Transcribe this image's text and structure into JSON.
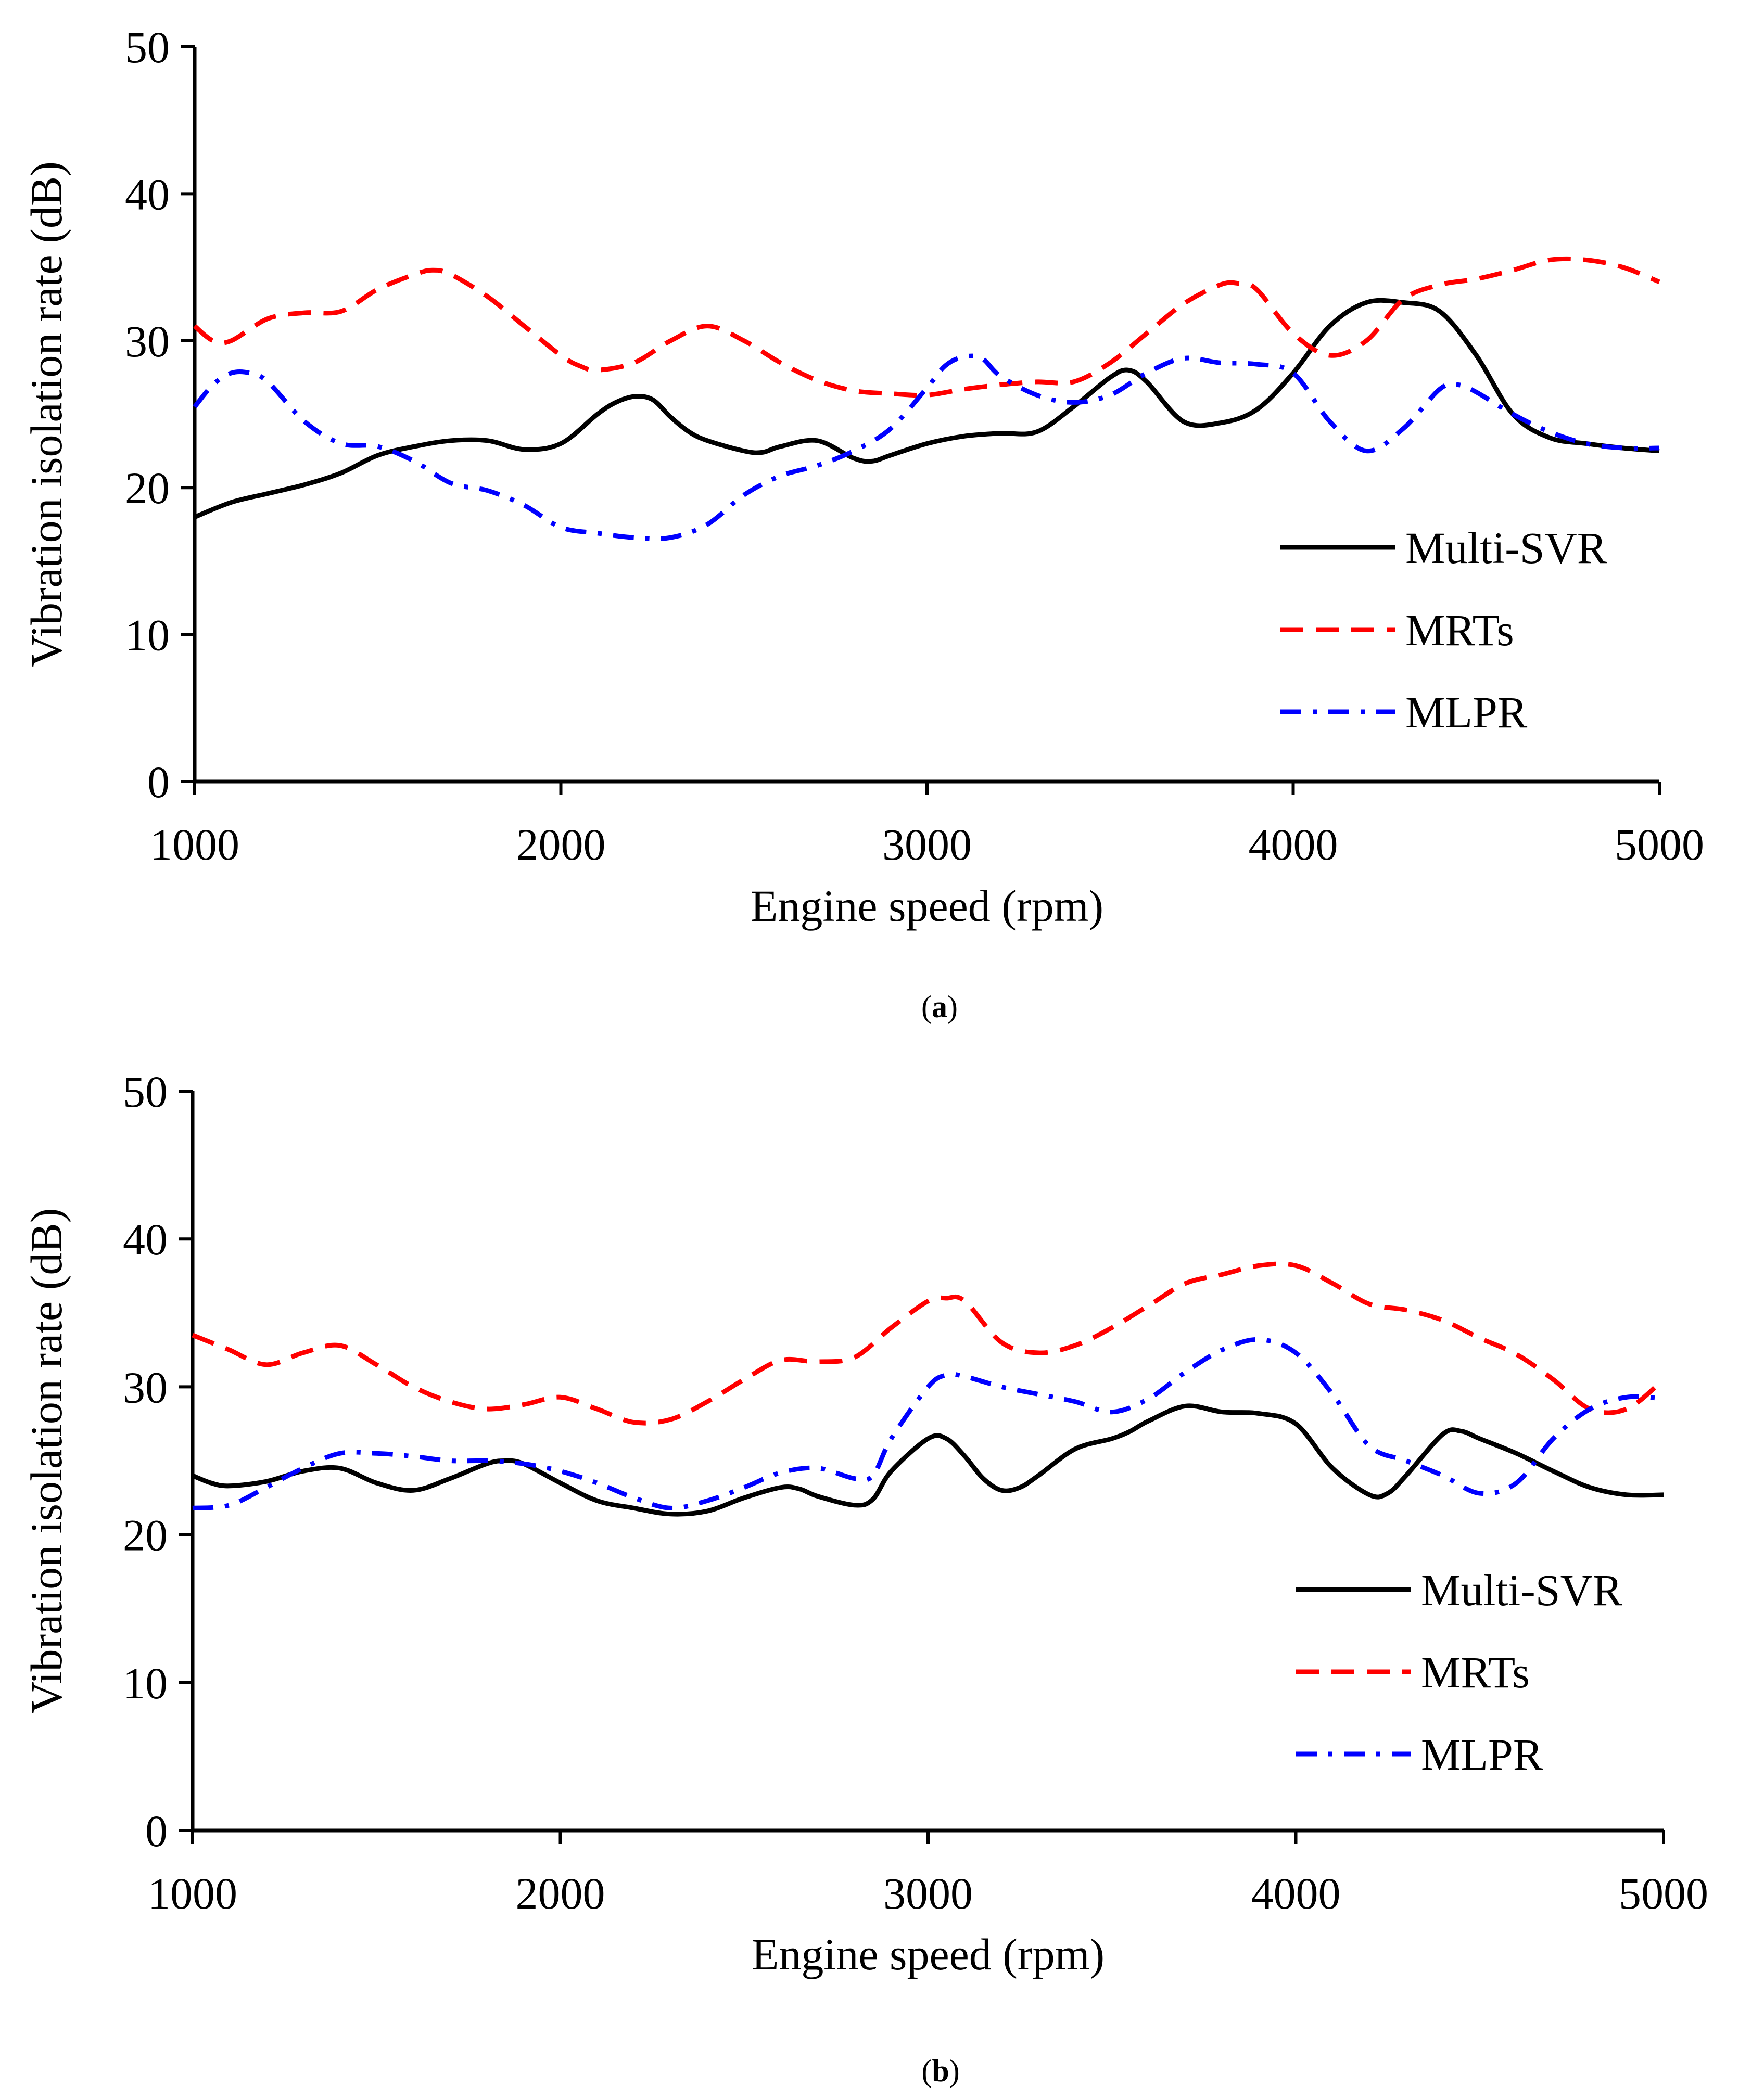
{
  "chart_data": [
    {
      "type": "line",
      "panel": "(a)",
      "panel_letter": "a",
      "xlabel": "Engine speed (rpm)",
      "ylabel": "Vibration isolation rate (dB)",
      "xlim": [
        1000,
        5000
      ],
      "ylim": [
        0,
        50
      ],
      "xticks": [
        1000,
        2000,
        3000,
        4000,
        5000
      ],
      "yticks": [
        0,
        10,
        20,
        30,
        40,
        50
      ],
      "legend_position": "right",
      "series": [
        {
          "name": "Multi-SVR",
          "color": "#000000",
          "style": "solid",
          "x": [
            1000,
            1100,
            1200,
            1300,
            1400,
            1500,
            1600,
            1700,
            1800,
            1900,
            2000,
            2100,
            2150,
            2200,
            2250,
            2300,
            2350,
            2400,
            2500,
            2550,
            2600,
            2700,
            2800,
            2850,
            2900,
            3000,
            3100,
            3200,
            3300,
            3400,
            3500,
            3550,
            3600,
            3700,
            3800,
            3900,
            4000,
            4100,
            4200,
            4300,
            4400,
            4500,
            4600,
            4700,
            4800,
            4900,
            5000
          ],
          "values": [
            18,
            19,
            19.6,
            20.2,
            21,
            22.2,
            22.8,
            23.2,
            23.2,
            22.6,
            23,
            25,
            25.8,
            26.2,
            26,
            24.8,
            23.8,
            23.2,
            22.5,
            22.4,
            22.8,
            23.2,
            22,
            21.8,
            22.2,
            23,
            23.5,
            23.7,
            23.8,
            25.5,
            27.5,
            28,
            27.2,
            24.5,
            24.4,
            25.3,
            27.8,
            31,
            32.6,
            32.6,
            32,
            29,
            25,
            23.4,
            23,
            22.7,
            22.5
          ]
        },
        {
          "name": "MRTs",
          "color": "#ff0000",
          "style": "dashed",
          "x": [
            1000,
            1050,
            1100,
            1200,
            1300,
            1400,
            1500,
            1600,
            1650,
            1700,
            1800,
            1900,
            2000,
            2050,
            2100,
            2200,
            2300,
            2400,
            2500,
            2600,
            2700,
            2800,
            2900,
            3000,
            3100,
            3200,
            3300,
            3400,
            3500,
            3600,
            3700,
            3800,
            3850,
            3900,
            4000,
            4100,
            4200,
            4300,
            4400,
            4500,
            4600,
            4700,
            4800,
            4900,
            5000
          ],
          "values": [
            31,
            30,
            30,
            31.5,
            31.9,
            32,
            33.5,
            34.5,
            34.8,
            34.5,
            33,
            31,
            29,
            28.3,
            28,
            28.5,
            30,
            31,
            30,
            28.5,
            27.3,
            26.6,
            26.4,
            26.3,
            26.7,
            27,
            27.2,
            27.2,
            28.5,
            30.5,
            32.5,
            33.8,
            33.9,
            33.5,
            30.5,
            29,
            30,
            32.8,
            33.8,
            34.2,
            34.8,
            35.5,
            35.5,
            35,
            34
          ]
        },
        {
          "name": "MLPR",
          "color": "#0000ff",
          "style": "dashdot",
          "x": [
            1000,
            1050,
            1100,
            1150,
            1200,
            1300,
            1400,
            1500,
            1600,
            1700,
            1800,
            1900,
            2000,
            2100,
            2200,
            2300,
            2400,
            2500,
            2600,
            2700,
            2800,
            2900,
            3000,
            3050,
            3100,
            3150,
            3200,
            3300,
            3400,
            3500,
            3600,
            3700,
            3800,
            3900,
            4000,
            4100,
            4200,
            4300,
            4400,
            4450,
            4500,
            4600,
            4700,
            4800,
            4900,
            5000
          ],
          "values": [
            25.5,
            27,
            27.8,
            27.8,
            27.2,
            24.5,
            23,
            22.8,
            21.8,
            20.3,
            19.8,
            18.8,
            17.3,
            16.9,
            16.6,
            16.6,
            17.5,
            19.5,
            20.8,
            21.5,
            22.5,
            24,
            26.8,
            28.3,
            28.9,
            28.8,
            27.6,
            26.3,
            25.8,
            26.3,
            27.8,
            28.8,
            28.5,
            28.4,
            27.8,
            24.5,
            22.5,
            24,
            26.7,
            27,
            26.5,
            25,
            23.8,
            23,
            22.7,
            22.7
          ]
        }
      ]
    },
    {
      "type": "line",
      "panel": "(b)",
      "panel_letter": "b",
      "xlabel": "Engine speed (rpm)",
      "ylabel": "Vibration isolation rate (dB)",
      "xlim": [
        1000,
        5000
      ],
      "ylim": [
        0,
        50
      ],
      "xticks": [
        1000,
        2000,
        3000,
        4000,
        5000
      ],
      "yticks": [
        0,
        10,
        20,
        30,
        40,
        50
      ],
      "legend_position": "right",
      "series": [
        {
          "name": "Multi-SVR",
          "color": "#000000",
          "style": "solid",
          "x": [
            1000,
            1050,
            1100,
            1200,
            1300,
            1400,
            1500,
            1600,
            1700,
            1800,
            1850,
            1900,
            2000,
            2100,
            2200,
            2300,
            2400,
            2500,
            2600,
            2650,
            2700,
            2800,
            2850,
            2900,
            3000,
            3050,
            3100,
            3150,
            3200,
            3250,
            3300,
            3400,
            3500,
            3550,
            3600,
            3700,
            3800,
            3900,
            4000,
            4100,
            4200,
            4250,
            4300,
            4400,
            4450,
            4500,
            4600,
            4700,
            4800,
            4900,
            5000
          ],
          "values": [
            24,
            23.5,
            23.3,
            23.6,
            24.3,
            24.5,
            23.5,
            23,
            23.8,
            24.8,
            25,
            24.8,
            23.5,
            22.3,
            21.8,
            21.4,
            21.6,
            22.5,
            23.2,
            23.1,
            22.6,
            22,
            22.4,
            24.3,
            26.5,
            26.5,
            25.3,
            23.8,
            23,
            23.2,
            24,
            25.8,
            26.5,
            27,
            27.7,
            28.7,
            28.3,
            28.2,
            27.5,
            24.5,
            22.7,
            22.8,
            24,
            26.8,
            27,
            26.5,
            25.5,
            24.3,
            23.2,
            22.7,
            22.7
          ]
        },
        {
          "name": "MRTs",
          "color": "#ff0000",
          "style": "dashed",
          "x": [
            1000,
            1050,
            1100,
            1200,
            1300,
            1400,
            1500,
            1600,
            1700,
            1800,
            1900,
            2000,
            2100,
            2200,
            2300,
            2400,
            2500,
            2600,
            2700,
            2800,
            2900,
            3000,
            3050,
            3100,
            3200,
            3300,
            3400,
            3500,
            3600,
            3700,
            3800,
            3900,
            4000,
            4100,
            4200,
            4300,
            4400,
            4500,
            4600,
            4700,
            4800,
            4900,
            5000
          ],
          "values": [
            33.5,
            33,
            32.5,
            31.5,
            32.3,
            32.8,
            31.5,
            30,
            29,
            28.5,
            28.8,
            29.3,
            28.5,
            27.6,
            27.8,
            29,
            30.5,
            31.8,
            31.7,
            32,
            34,
            35.8,
            36,
            35.8,
            33,
            32.3,
            32.8,
            34,
            35.5,
            37,
            37.6,
            38.2,
            38.2,
            37,
            35.6,
            35.2,
            34.5,
            33.3,
            32.2,
            30.5,
            28.5,
            28.5,
            30.5
          ]
        },
        {
          "name": "MLPR",
          "color": "#0000ff",
          "style": "dashdot",
          "x": [
            1000,
            1100,
            1200,
            1300,
            1400,
            1500,
            1600,
            1700,
            1800,
            1900,
            2000,
            2100,
            2200,
            2300,
            2400,
            2500,
            2600,
            2700,
            2800,
            2850,
            2900,
            3000,
            3050,
            3100,
            3200,
            3300,
            3400,
            3500,
            3600,
            3700,
            3800,
            3900,
            4000,
            4100,
            4200,
            4300,
            4400,
            4500,
            4600,
            4700,
            4800,
            4900,
            5000
          ],
          "values": [
            21.8,
            22,
            23.2,
            24.5,
            25.5,
            25.5,
            25.3,
            25,
            25,
            24.8,
            24.3,
            23.5,
            22.5,
            21.8,
            22.3,
            23.2,
            24.2,
            24.5,
            23.8,
            24,
            26.5,
            30,
            30.8,
            30.7,
            30,
            29.5,
            29,
            28.3,
            29.2,
            31,
            32.5,
            33.2,
            32.3,
            29.5,
            26,
            25,
            24,
            22.8,
            23.5,
            26.5,
            28.5,
            29.3,
            29.2
          ]
        }
      ]
    }
  ]
}
